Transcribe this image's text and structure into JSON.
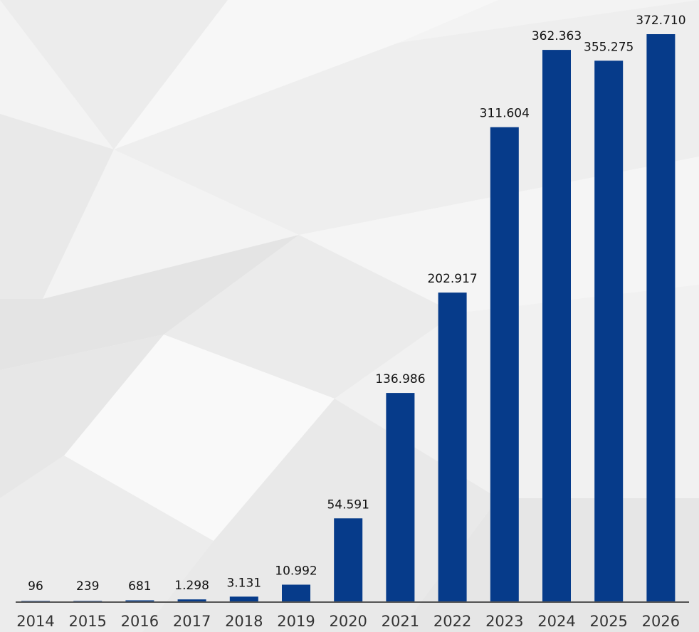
{
  "chart_data": {
    "type": "bar",
    "categories": [
      "2014",
      "2015",
      "2016",
      "2017",
      "2018",
      "2019",
      "2020",
      "2021",
      "2022",
      "2023",
      "2024",
      "2025",
      "2026"
    ],
    "values": [
      96,
      239,
      681,
      1298,
      3131,
      10992,
      54591,
      136986,
      202917,
      311604,
      362363,
      355275,
      372710
    ],
    "data_labels": [
      "96",
      "239",
      "681",
      "1.298",
      "3.131",
      "10.992",
      "54.591",
      "136.986",
      "202.917",
      "311.604",
      "362.363",
      "355.275",
      "372.710"
    ],
    "title": "",
    "xlabel": "",
    "ylabel": "",
    "ylim": [
      0,
      400000
    ],
    "grid": false,
    "legend": "none",
    "colors": {
      "bar": "#063b8a",
      "background": "#f3f3f3",
      "axis": "#222222"
    }
  }
}
